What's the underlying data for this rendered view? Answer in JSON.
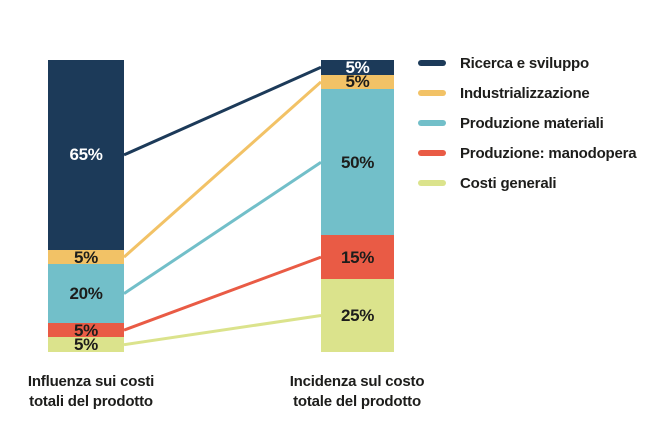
{
  "chart_data": {
    "type": "slope-stacked-bar",
    "background": "#ffffff",
    "value_suffix": "%",
    "legend_position": "right",
    "series": [
      {
        "name": "Ricerca e sviluppo",
        "color": "#1c3a59",
        "label_text_color": "#ffffff",
        "values": [
          65,
          5
        ]
      },
      {
        "name": "Industrializzazione",
        "color": "#f2c266",
        "label_text_color": "#1d1d1b",
        "values": [
          5,
          5
        ]
      },
      {
        "name": "Produzione materiali",
        "color": "#72bfc9",
        "label_text_color": "#1d1d1b",
        "values": [
          20,
          50
        ]
      },
      {
        "name": "Produzione: manodopera",
        "color": "#e95b45",
        "label_text_color": "#1d1d1b",
        "values": [
          5,
          15
        ]
      },
      {
        "name": "Costi generali",
        "color": "#dbe38c",
        "label_text_color": "#1d1d1b",
        "values": [
          5,
          25
        ]
      }
    ],
    "bars": [
      {
        "label_lines": [
          "Influenza sui costi",
          "totali del prodotto"
        ]
      },
      {
        "label_lines": [
          "Incidenza sul costo",
          "totale del prodotto"
        ]
      }
    ]
  }
}
